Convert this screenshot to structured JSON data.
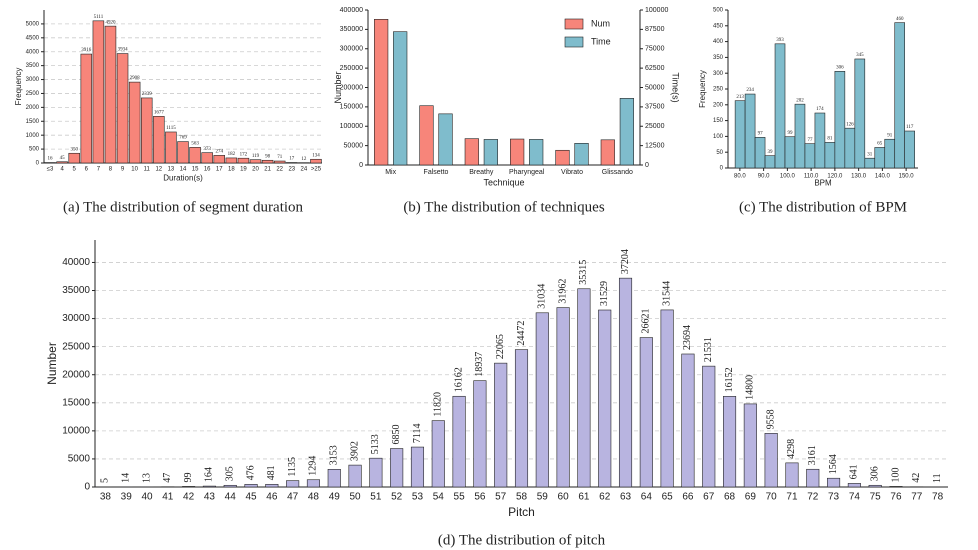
{
  "chart_data": [
    {
      "type": "bar",
      "caption": "(a) The distribution of segment duration",
      "xlabel": "Duration(s)",
      "ylabel": "Frequency",
      "categories": [
        "≤3",
        "4",
        "5",
        "6",
        "7",
        "8",
        "9",
        "10",
        "11",
        "12",
        "13",
        "14",
        "15",
        "16",
        "17",
        "18",
        "19",
        "20",
        "21",
        "22",
        "23",
        "24",
        ">25"
      ],
      "values": [
        16,
        45,
        350,
        3916,
        5111,
        4920,
        3934,
        2908,
        2339,
        1677,
        1115,
        769,
        563,
        373,
        274,
        182,
        172,
        119,
        98,
        71,
        17,
        12,
        134
      ],
      "color": "#f7857a",
      "ylim": [
        0,
        5500
      ],
      "yticks": [
        0,
        500,
        1000,
        1500,
        2000,
        2500,
        3000,
        3500,
        4000,
        4500,
        5000
      ],
      "grid": true,
      "data_labels": true
    },
    {
      "type": "bar",
      "caption": "(b) The distribution of techniques",
      "xlabel": "Technique",
      "ylabel": "Number",
      "y2label": "Time(s)",
      "categories": [
        "Mix",
        "Falsetto",
        "Breathy",
        "Pharyngeal",
        "Vibrato",
        "Glissando"
      ],
      "series": [
        {
          "name": "Num",
          "color": "#f7857a",
          "values": [
            376000,
            153000,
            68000,
            67000,
            38000,
            65000
          ]
        },
        {
          "name": "Time",
          "color": "#7fbccc",
          "axis": "y2",
          "values": [
            86000,
            33000,
            16500,
            16500,
            14000,
            43000
          ]
        }
      ],
      "ylim": [
        0,
        400000
      ],
      "yticks": [
        0,
        50000,
        100000,
        150000,
        200000,
        250000,
        300000,
        350000,
        400000
      ],
      "y2lim": [
        0,
        100000
      ],
      "y2ticks": [
        0,
        12500,
        25000,
        37500,
        50000,
        62500,
        75000,
        87500,
        100000
      ],
      "grid": false,
      "legend": "upper right"
    },
    {
      "type": "histogram",
      "caption": "(c) The distribution of BPM",
      "xlabel": "BPM",
      "ylabel": "Frequency",
      "bins": [
        78.0,
        82.2,
        86.4,
        90.6,
        94.8,
        99.0,
        103.2,
        107.4,
        111.6,
        115.8,
        120.0,
        124.2,
        128.4,
        132.6,
        136.8,
        141.0,
        145.2,
        149.4,
        153.6
      ],
      "values": [
        213,
        234,
        97,
        39,
        393,
        99,
        202,
        77,
        174,
        81,
        306,
        126,
        345,
        31,
        65,
        91,
        460,
        117
      ],
      "color": "#7fbccc",
      "xlim": [
        75,
        155
      ],
      "xticks": [
        {
          "value": 80,
          "label": "80.0"
        },
        {
          "value": 90,
          "label": "90.0"
        },
        {
          "value": 100,
          "label": "100.0"
        },
        {
          "value": 110,
          "label": "110.0"
        },
        {
          "value": 120,
          "label": "120.0"
        },
        {
          "value": 130,
          "label": "130.0"
        },
        {
          "value": 140,
          "label": "140.0"
        },
        {
          "value": 150,
          "label": "150.0"
        }
      ],
      "ylim": [
        0,
        500
      ],
      "yticks": [
        0,
        50,
        100,
        150,
        200,
        250,
        300,
        350,
        400,
        450,
        500
      ],
      "grid": false,
      "data_labels": true
    },
    {
      "type": "bar",
      "caption": "(d) The distribution of pitch",
      "xlabel": "Pitch",
      "ylabel": "Number",
      "categories": [
        "38",
        "39",
        "40",
        "41",
        "42",
        "43",
        "44",
        "45",
        "46",
        "47",
        "48",
        "49",
        "50",
        "51",
        "52",
        "53",
        "54",
        "55",
        "56",
        "57",
        "58",
        "59",
        "60",
        "61",
        "62",
        "63",
        "64",
        "65",
        "66",
        "67",
        "68",
        "69",
        "70",
        "71",
        "72",
        "73",
        "74",
        "75",
        "76",
        "77",
        "78"
      ],
      "values": [
        5,
        14,
        13,
        47,
        99,
        164,
        305,
        476,
        481,
        1135,
        1294,
        3153,
        3902,
        5133,
        6850,
        7114,
        11820,
        16162,
        18937,
        22065,
        24472,
        31034,
        31962,
        35315,
        31529,
        37204,
        26621,
        31544,
        23694,
        21531,
        16152,
        14800,
        9558,
        4298,
        3161,
        1564,
        641,
        306,
        100,
        42,
        11
      ],
      "color": "#b8b4e0",
      "ylim": [
        0,
        44000
      ],
      "yticks": [
        0,
        5000,
        10000,
        15000,
        20000,
        25000,
        30000,
        35000,
        40000
      ],
      "grid": true,
      "data_labels": true
    }
  ]
}
